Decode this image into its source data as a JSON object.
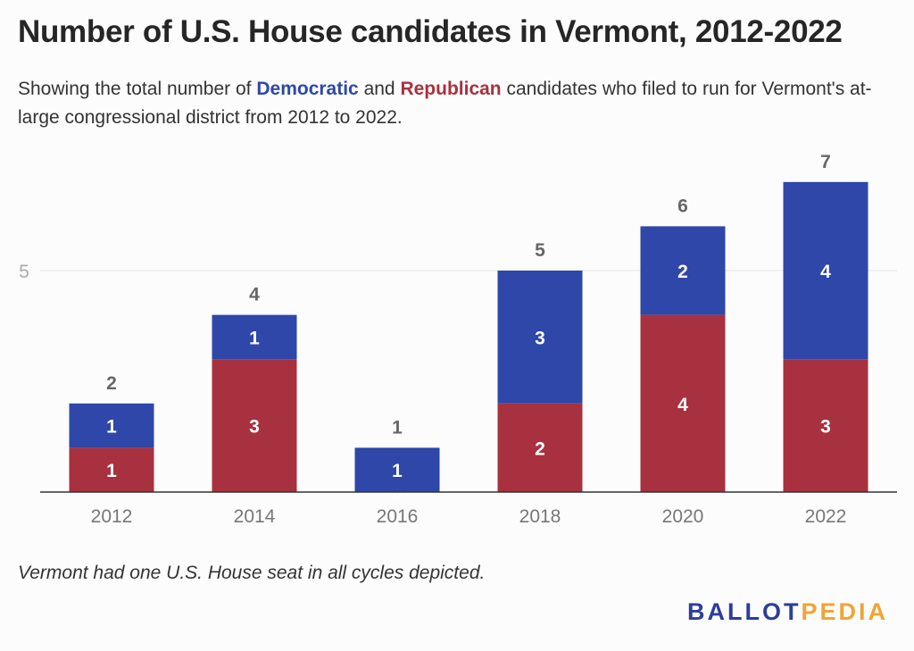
{
  "title": "Number of U.S. House candidates in Vermont, 2012-2022",
  "subtitle": {
    "before": "Showing the total number of ",
    "democratic": "Democratic",
    "middle": " and ",
    "republican": "Republican",
    "after": " candidates who filed to run for Vermont's at-large congressional district from 2012 to 2022."
  },
  "note": "Vermont had one U.S. House seat in all cycles depicted.",
  "logo": {
    "part1": "BALLOT",
    "part2": "PEDIA"
  },
  "colors": {
    "democratic": "#2e47a8",
    "republican": "#a8313f",
    "grid": "#e6e6e6",
    "axis": "#333333",
    "tick_text": "#777777",
    "total_text": "#666666"
  },
  "chart_data": {
    "type": "bar",
    "stacked": true,
    "categories": [
      "2012",
      "2014",
      "2016",
      "2018",
      "2020",
      "2022"
    ],
    "series": [
      {
        "name": "Republican",
        "color": "#a8313f",
        "values": [
          1,
          3,
          0,
          2,
          4,
          3
        ]
      },
      {
        "name": "Democratic",
        "color": "#2e47a8",
        "values": [
          1,
          1,
          1,
          3,
          2,
          4
        ]
      }
    ],
    "totals": [
      2,
      4,
      1,
      5,
      6,
      7
    ],
    "ylim": [
      0,
      7
    ],
    "yticks": [
      5
    ],
    "grid": true,
    "xlabel": "",
    "ylabel": ""
  }
}
